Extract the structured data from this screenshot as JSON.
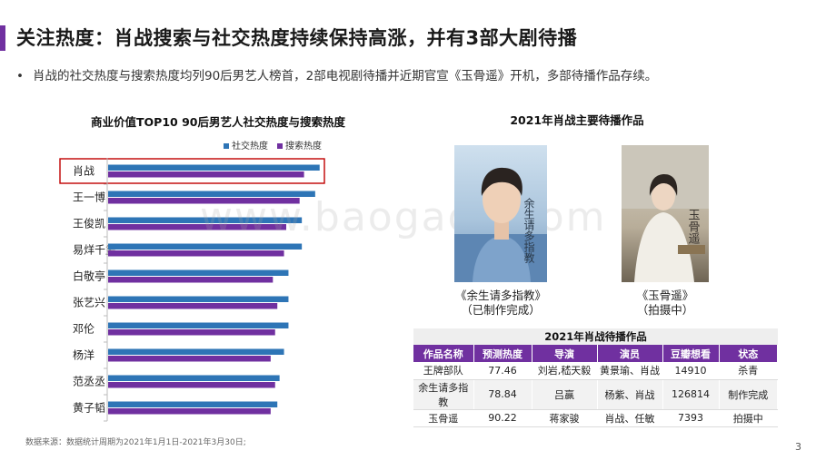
{
  "header": {
    "title": "关注热度：肖战搜索与社交热度持续保持高涨，并有3部大剧待播",
    "bullet_dot": "•",
    "bullet": "肖战的社交热度与搜索热度均列90后男艺人榜首，2部电视剧待播并近期官宣《玉骨遥》开机，多部待播作品存续。"
  },
  "chart_data": {
    "type": "bar",
    "orientation": "horizontal",
    "title": "商业价值TOP10  90后男艺人社交热度与搜索热度",
    "categories": [
      "肖战",
      "王一博",
      "王俊凯",
      "易烊千玺",
      "白敬亭",
      "张艺兴",
      "邓伦",
      "杨洋",
      "范丞丞",
      "黄子韬"
    ],
    "series": [
      {
        "name": "社交热度",
        "color": "#2e75b6",
        "values": [
          95,
          93,
          87,
          87,
          81,
          81,
          81,
          79,
          77,
          76
        ]
      },
      {
        "name": "搜索热度",
        "color": "#7030a0",
        "values": [
          88,
          86,
          80,
          79,
          74,
          76,
          75,
          73,
          75,
          73
        ]
      }
    ],
    "xlim": [
      0,
      100
    ],
    "highlight_category": "肖战",
    "highlight_color": "#c00000",
    "grid": false,
    "legend": "top-right"
  },
  "works": {
    "title": "2021年肖战主要待播作品",
    "items": [
      {
        "name": "《余生请多指教》",
        "status": "（已制作完成）",
        "poster_text": "余生请多指教"
      },
      {
        "name": "《玉骨遥》",
        "status": "（拍摄中）",
        "poster_text": "玉骨遥"
      }
    ]
  },
  "table": {
    "title": "2021年肖战待播作品",
    "headers": [
      "作品名称",
      "预测热度",
      "导演",
      "演员",
      "豆瓣想看",
      "状态"
    ],
    "rows": [
      [
        "王牌部队",
        "77.46",
        "刘岩,嵇天毅",
        "黄景瑜、肖战",
        "14910",
        "杀青"
      ],
      [
        "余生请多指教",
        "78.84",
        "吕赢",
        "杨紫、肖战",
        "126814",
        "制作完成"
      ],
      [
        "玉骨遥",
        "90.22",
        "蒋家骏",
        "肖战、任敏",
        "7393",
        "拍摄中"
      ]
    ]
  },
  "footer": {
    "source": "数据来源：数据统计周期为2021年1月1日-2021年3月30日;",
    "page_number": "3"
  },
  "watermark": "www.baogao8.com"
}
